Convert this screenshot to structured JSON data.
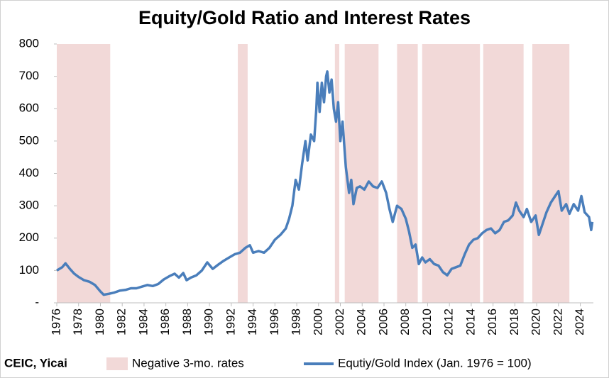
{
  "chart_data": {
    "type": "line",
    "title": "Equity/Gold Ratio and Interest Rates",
    "source": "CEIC, Yicai",
    "xlim": [
      1976,
      2025.2
    ],
    "xticks": [
      1976,
      1978,
      1980,
      1982,
      1984,
      1986,
      1988,
      1990,
      1992,
      1994,
      1996,
      1998,
      2000,
      2002,
      2004,
      2006,
      2008,
      2010,
      2012,
      2014,
      2016,
      2018,
      2020,
      2022,
      2024
    ],
    "ylim": [
      0,
      800
    ],
    "yticks": [
      {
        "value": 0,
        "label": "-"
      },
      100,
      200,
      300,
      400,
      500,
      600,
      700,
      800
    ],
    "legend": "bottom",
    "shaded": {
      "name": "Negative 3-mo. rates",
      "color": "#f2d9d8",
      "periods": [
        [
          1976.0,
          1980.9
        ],
        [
          1992.6,
          1993.5
        ],
        [
          2001.5,
          2001.9
        ],
        [
          2002.4,
          2005.5
        ],
        [
          2007.2,
          2009.1
        ],
        [
          2009.5,
          2014.8
        ],
        [
          2015.1,
          2018.8
        ],
        [
          2019.6,
          2023.0
        ]
      ]
    },
    "x": [
      1976.0,
      1976.5,
      1976.8,
      1977.2,
      1977.6,
      1978.0,
      1978.5,
      1979.0,
      1979.5,
      1980.0,
      1980.3,
      1980.8,
      1981.3,
      1981.8,
      1982.3,
      1982.8,
      1983.3,
      1983.8,
      1984.3,
      1984.8,
      1985.3,
      1985.8,
      1986.3,
      1986.8,
      1987.2,
      1987.6,
      1987.9,
      1988.3,
      1988.8,
      1989.3,
      1989.8,
      1990.3,
      1990.8,
      1991.3,
      1991.8,
      1992.3,
      1992.8,
      1993.3,
      1993.7,
      1994.0,
      1994.5,
      1995.0,
      1995.5,
      1996.0,
      1996.5,
      1997.0,
      1997.3,
      1997.6,
      1997.9,
      1998.2,
      1998.5,
      1998.8,
      1999.0,
      1999.3,
      1999.6,
      1999.8,
      1999.9,
      2000.1,
      2000.3,
      2000.5,
      2000.7,
      2000.8,
      2001.0,
      2001.2,
      2001.4,
      2001.6,
      2001.8,
      2002.0,
      2002.2,
      2002.5,
      2002.8,
      2003.0,
      2003.2,
      2003.5,
      2003.8,
      2004.2,
      2004.6,
      2005.0,
      2005.4,
      2005.8,
      2006.2,
      2006.5,
      2006.8,
      2007.2,
      2007.6,
      2008.0,
      2008.3,
      2008.6,
      2008.9,
      2009.2,
      2009.5,
      2009.8,
      2010.2,
      2010.6,
      2011.0,
      2011.4,
      2011.8,
      2012.2,
      2012.6,
      2013.0,
      2013.4,
      2013.8,
      2014.2,
      2014.6,
      2015.0,
      2015.4,
      2015.8,
      2016.2,
      2016.6,
      2017.0,
      2017.4,
      2017.8,
      2018.1,
      2018.4,
      2018.8,
      2019.1,
      2019.5,
      2019.9,
      2020.2,
      2020.5,
      2020.9,
      2021.3,
      2021.7,
      2022.0,
      2022.3,
      2022.7,
      2023.0,
      2023.4,
      2023.8,
      2024.1,
      2024.4,
      2024.8,
      2025.0,
      2025.1
    ],
    "series": [
      {
        "name": "Equtiy/Gold Index (Jan. 1976 = 100)",
        "color": "#4a7ebb",
        "values": [
          100,
          110,
          122,
          105,
          90,
          80,
          70,
          65,
          55,
          35,
          25,
          28,
          32,
          38,
          40,
          45,
          45,
          50,
          55,
          52,
          58,
          72,
          82,
          90,
          78,
          92,
          70,
          78,
          85,
          100,
          125,
          105,
          118,
          130,
          140,
          150,
          155,
          170,
          178,
          155,
          160,
          155,
          170,
          195,
          210,
          230,
          260,
          300,
          380,
          350,
          430,
          500,
          440,
          520,
          500,
          600,
          680,
          590,
          680,
          620,
          700,
          715,
          650,
          690,
          600,
          560,
          620,
          500,
          560,
          420,
          340,
          380,
          305,
          355,
          360,
          350,
          375,
          360,
          355,
          375,
          340,
          290,
          250,
          300,
          290,
          260,
          220,
          170,
          180,
          120,
          140,
          125,
          135,
          120,
          115,
          95,
          85,
          105,
          110,
          115,
          150,
          180,
          195,
          200,
          215,
          225,
          230,
          215,
          225,
          250,
          255,
          270,
          310,
          285,
          265,
          290,
          250,
          270,
          210,
          240,
          280,
          310,
          330,
          345,
          285,
          305,
          275,
          305,
          285,
          330,
          280,
          265,
          225,
          250
        ]
      }
    ]
  }
}
